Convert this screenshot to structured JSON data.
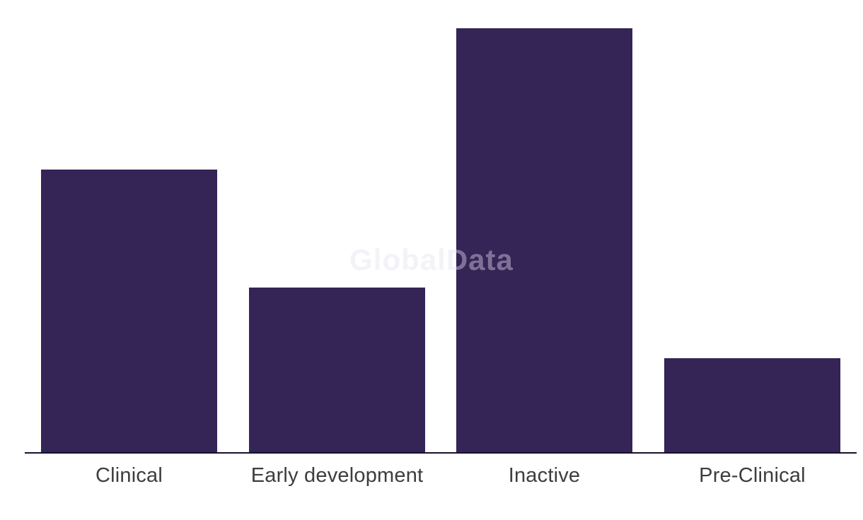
{
  "watermark": {
    "text": "GlobalData",
    "color_rgba": "rgba(227, 223, 238, 0.42)"
  },
  "chart_data": {
    "type": "bar",
    "title": "",
    "xlabel": "",
    "ylabel": "",
    "categories": [
      "Clinical",
      "Early development",
      "Inactive",
      "Pre-Clinical"
    ],
    "values": [
      12,
      7,
      18,
      4
    ],
    "ylim": [
      0,
      18
    ],
    "grid": false,
    "legend": false,
    "y_axis_visible": false,
    "bar_color": "#352456",
    "axis_line_color": "#16122e",
    "label_color": "#3d3d3d"
  }
}
